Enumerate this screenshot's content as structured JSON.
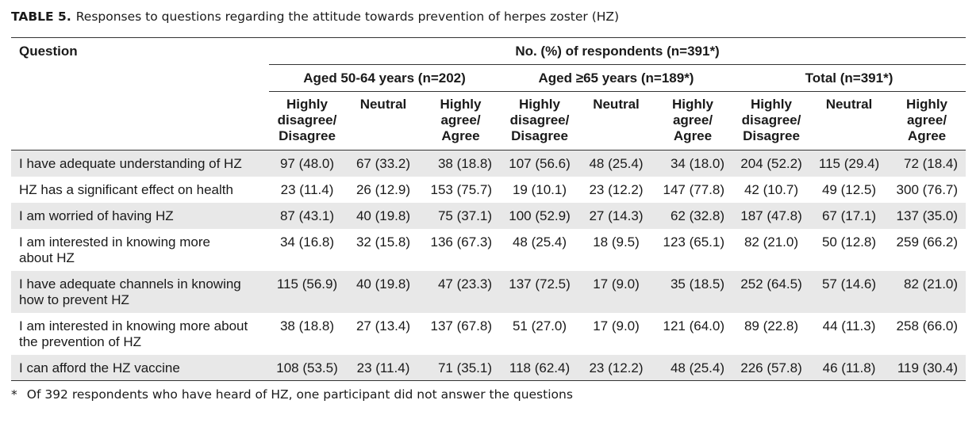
{
  "table": {
    "label": "TABLE 5.",
    "title": "Responses to questions regarding the attitude towards prevention of herpes zoster (HZ)",
    "question_header": "Question",
    "main_header": "No. (%) of respondents (n=391*)",
    "groups": [
      "Aged 50-64 years (n=202)",
      "Aged ≥65 years (n=189*)",
      "Total (n=391*)"
    ],
    "subheaders": {
      "disagree": [
        "Highly",
        "disagree/",
        "Disagree"
      ],
      "neutral": "Neutral",
      "agree": [
        "Highly",
        "agree/",
        "Agree"
      ]
    },
    "rows": [
      {
        "q": [
          "I have adequate understanding of HZ"
        ],
        "v": [
          "97 (48.0)",
          "67 (33.2)",
          "38 (18.8)",
          "107 (56.6)",
          "48 (25.4)",
          "34 (18.0)",
          "204 (52.2)",
          "115 (29.4)",
          "72 (18.4)"
        ]
      },
      {
        "q": [
          "HZ has a significant effect on health"
        ],
        "v": [
          "23 (11.4)",
          "26 (12.9)",
          "153 (75.7)",
          "19 (10.1)",
          "23 (12.2)",
          "147 (77.8)",
          "42 (10.7)",
          "49 (12.5)",
          "300 (76.7)"
        ]
      },
      {
        "q": [
          "I am worried of having HZ"
        ],
        "v": [
          "87 (43.1)",
          "40 (19.8)",
          "75 (37.1)",
          "100 (52.9)",
          "27 (14.3)",
          "62 (32.8)",
          "187 (47.8)",
          "67 (17.1)",
          "137 (35.0)"
        ]
      },
      {
        "q": [
          "I am interested in knowing more",
          "about HZ"
        ],
        "v": [
          "34 (16.8)",
          "32 (15.8)",
          "136 (67.3)",
          "48 (25.4)",
          "18 (9.5)",
          "123 (65.1)",
          "82 (21.0)",
          "50 (12.8)",
          "259 (66.2)"
        ]
      },
      {
        "q": [
          "I have adequate channels in knowing",
          "how to prevent HZ"
        ],
        "v": [
          "115 (56.9)",
          "40 (19.8)",
          "47 (23.3)",
          "137 (72.5)",
          "17 (9.0)",
          "35 (18.5)",
          "252 (64.5)",
          "57 (14.6)",
          "82 (21.0)"
        ]
      },
      {
        "q": [
          "I am interested in knowing more about",
          "the prevention of HZ"
        ],
        "v": [
          "38 (18.8)",
          "27 (13.4)",
          "137 (67.8)",
          "51 (27.0)",
          "17 (9.0)",
          "121 (64.0)",
          "89 (22.8)",
          "44 (11.3)",
          "258 (66.0)"
        ]
      },
      {
        "q": [
          "I can afford the HZ vaccine"
        ],
        "v": [
          "108 (53.5)",
          "23 (11.4)",
          "71 (35.1)",
          "118 (62.4)",
          "23 (12.2)",
          "48 (25.4)",
          "226 (57.8)",
          "46 (11.8)",
          "119 (30.4)"
        ]
      }
    ],
    "footnote_symbol": "*",
    "footnote": "Of 392 respondents who have heard of HZ, one participant did not answer the questions"
  }
}
